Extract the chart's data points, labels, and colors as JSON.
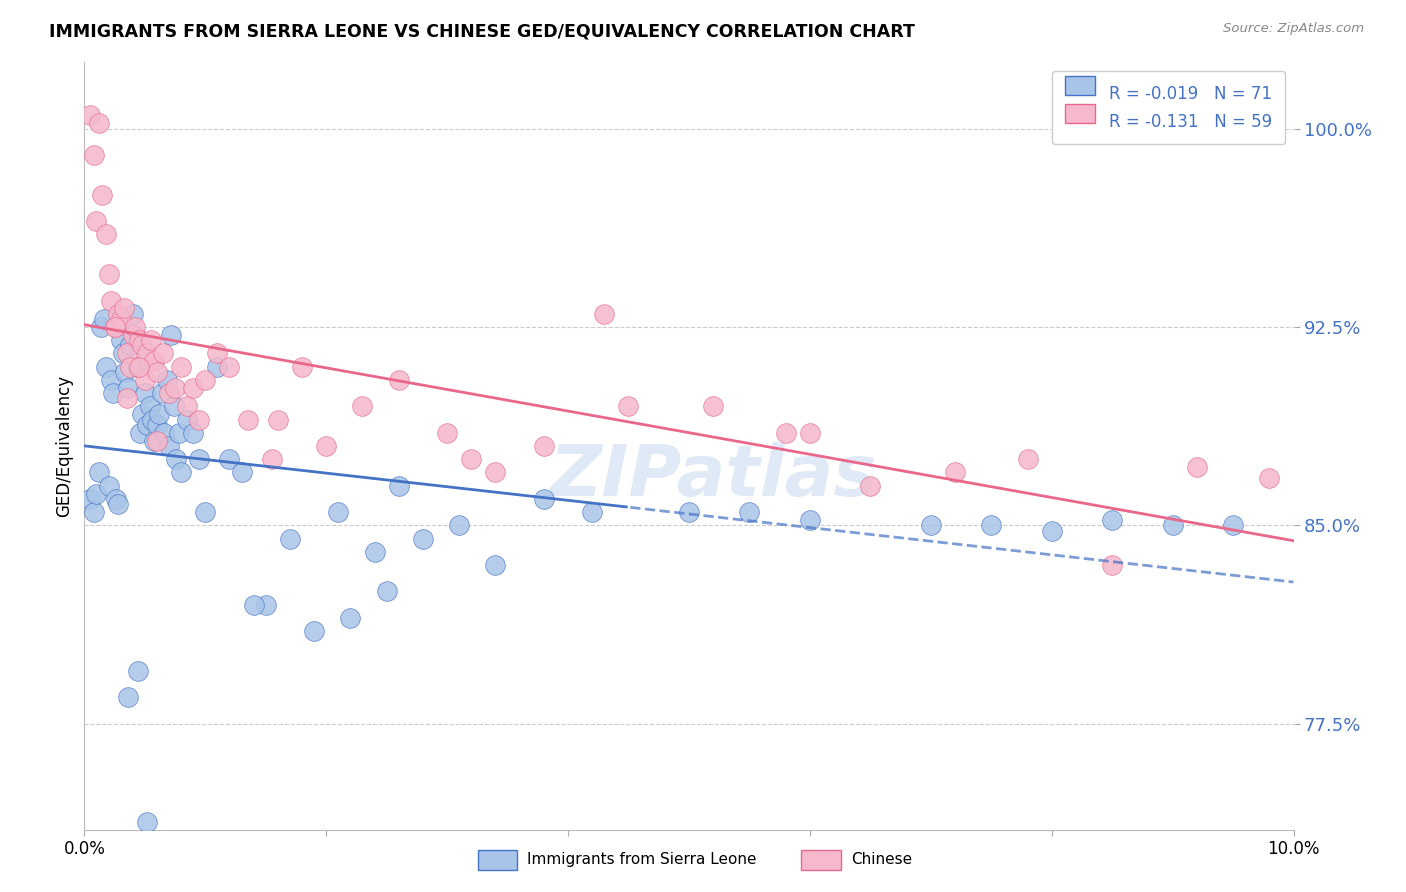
{
  "title": "IMMIGRANTS FROM SIERRA LEONE VS CHINESE GED/EQUIVALENCY CORRELATION CHART",
  "source": "Source: ZipAtlas.com",
  "ylabel": "GED/Equivalency",
  "yticks": [
    77.5,
    85.0,
    92.5,
    100.0
  ],
  "ytick_labels": [
    "77.5%",
    "85.0%",
    "92.5%",
    "100.0%"
  ],
  "xtick_labels": [
    "0.0%",
    "10.0%"
  ],
  "xmin": 0.0,
  "xmax": 10.0,
  "ymin": 73.5,
  "ymax": 102.5,
  "legend_entries": [
    {
      "label": "Immigrants from Sierra Leone",
      "r": "-0.019",
      "n": "71"
    },
    {
      "label": "Chinese",
      "r": "-0.131",
      "n": "59"
    }
  ],
  "watermark": "ZIPatlas",
  "blue_color": "#4472C4",
  "pink_color": "#e8678a",
  "blue_scatter_color": "#a8c4e8",
  "pink_scatter_color": "#f5b8cc",
  "blue_line_color": "#4472C4",
  "pink_line_color": "#e8678a",
  "sierra_leone_x": [
    0.05,
    0.08,
    0.1,
    0.12,
    0.14,
    0.16,
    0.18,
    0.2,
    0.22,
    0.24,
    0.26,
    0.28,
    0.3,
    0.32,
    0.34,
    0.36,
    0.38,
    0.4,
    0.42,
    0.44,
    0.46,
    0.48,
    0.5,
    0.52,
    0.54,
    0.56,
    0.58,
    0.6,
    0.62,
    0.64,
    0.66,
    0.68,
    0.7,
    0.72,
    0.74,
    0.76,
    0.78,
    0.8,
    0.85,
    0.9,
    0.95,
    1.0,
    1.1,
    1.2,
    1.3,
    1.5,
    1.7,
    1.9,
    2.1,
    2.4,
    2.6,
    2.8,
    3.1,
    3.4,
    3.8,
    4.2,
    5.0,
    5.5,
    6.0,
    7.0,
    7.5,
    8.0,
    8.5,
    9.0,
    9.5,
    2.2,
    2.5,
    1.4,
    0.36,
    0.44,
    0.52
  ],
  "sierra_leone_y": [
    86.0,
    85.5,
    86.2,
    87.0,
    92.5,
    92.8,
    91.0,
    86.5,
    90.5,
    90.0,
    86.0,
    85.8,
    92.0,
    91.5,
    90.8,
    90.2,
    91.8,
    93.0,
    92.2,
    91.0,
    88.5,
    89.2,
    90.0,
    88.8,
    89.5,
    89.0,
    88.2,
    88.8,
    89.2,
    90.0,
    88.5,
    90.5,
    88.0,
    92.2,
    89.5,
    87.5,
    88.5,
    87.0,
    89.0,
    88.5,
    87.5,
    85.5,
    91.0,
    87.5,
    87.0,
    82.0,
    84.5,
    81.0,
    85.5,
    84.0,
    86.5,
    84.5,
    85.0,
    83.5,
    86.0,
    85.5,
    85.5,
    85.5,
    85.2,
    85.0,
    85.0,
    84.8,
    85.2,
    85.0,
    85.0,
    81.5,
    82.5,
    82.0,
    78.5,
    79.5,
    73.8
  ],
  "chinese_x": [
    0.05,
    0.08,
    0.1,
    0.12,
    0.15,
    0.18,
    0.2,
    0.22,
    0.25,
    0.28,
    0.3,
    0.33,
    0.35,
    0.38,
    0.4,
    0.42,
    0.45,
    0.48,
    0.5,
    0.52,
    0.55,
    0.58,
    0.6,
    0.65,
    0.7,
    0.75,
    0.8,
    0.85,
    0.9,
    0.95,
    1.0,
    1.1,
    1.2,
    1.35,
    1.55,
    1.8,
    2.0,
    2.3,
    2.6,
    3.0,
    3.4,
    3.8,
    4.3,
    5.2,
    5.8,
    6.5,
    7.2,
    7.8,
    8.5,
    9.2,
    0.25,
    0.45,
    0.6,
    0.35,
    1.6,
    4.5,
    9.8,
    6.0,
    3.2
  ],
  "chinese_y": [
    100.5,
    99.0,
    96.5,
    100.2,
    97.5,
    96.0,
    94.5,
    93.5,
    92.5,
    93.0,
    92.8,
    93.2,
    91.5,
    91.0,
    92.2,
    92.5,
    92.0,
    91.8,
    90.5,
    91.5,
    92.0,
    91.2,
    90.8,
    91.5,
    90.0,
    90.2,
    91.0,
    89.5,
    90.2,
    89.0,
    90.5,
    91.5,
    91.0,
    89.0,
    87.5,
    91.0,
    88.0,
    89.5,
    90.5,
    88.5,
    87.0,
    88.0,
    93.0,
    89.5,
    88.5,
    86.5,
    87.0,
    87.5,
    83.5,
    87.2,
    92.5,
    91.0,
    88.2,
    89.8,
    89.0,
    89.5,
    86.8,
    88.5,
    87.5
  ]
}
